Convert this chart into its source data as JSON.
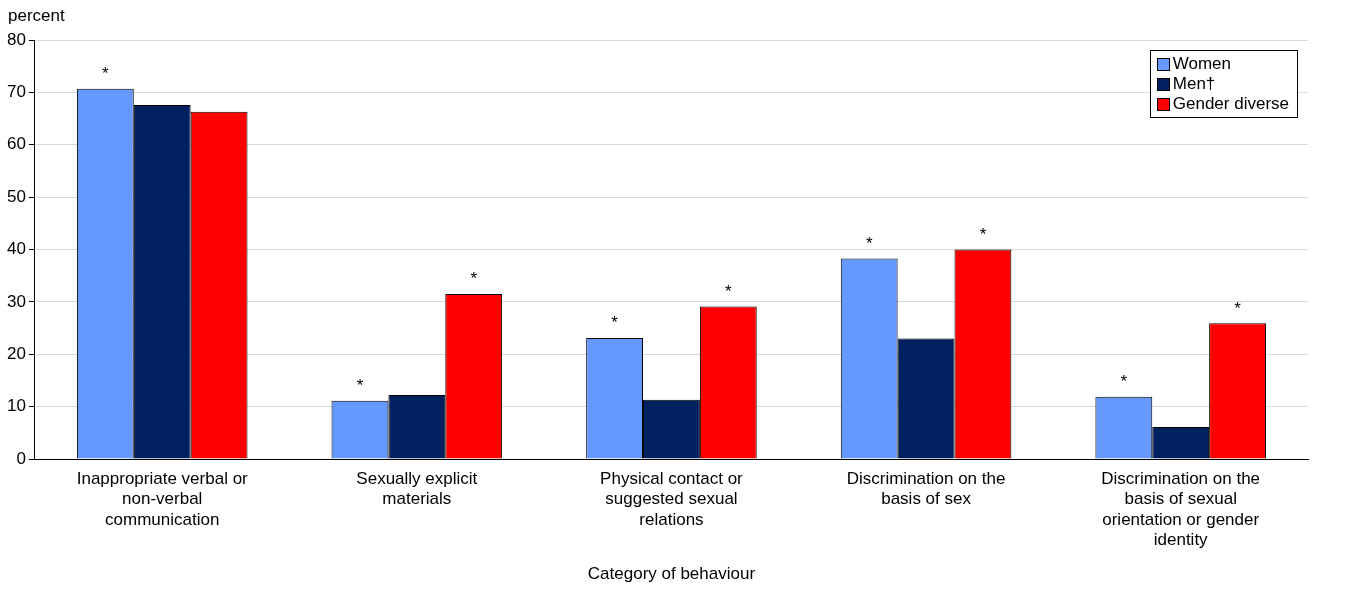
{
  "chart_data": {
    "type": "bar",
    "ylabel": "percent",
    "xlabel": "Category of behaviour",
    "categories": [
      "Inappropriate verbal or non-verbal communication",
      "Sexually explicit materials",
      "Physical contact or suggested sexual relations",
      "Discrimination on the basis of sex",
      "Discrimination on the basis of sexual orientation or gender identity"
    ],
    "series": [
      {
        "name": "Women",
        "color": "#6699ff",
        "values": [
          70.7,
          11.1,
          23.1,
          38.3,
          11.9
        ],
        "value_labels": [
          "*",
          "*",
          "*",
          "*",
          "*"
        ]
      },
      {
        "name": "Men†",
        "color": "#002060",
        "values": [
          67.6,
          12.2,
          11.3,
          23.0,
          6.1
        ]
      },
      {
        "name": "Gender diverse",
        "color": "#ff0000",
        "values": [
          66.3,
          31.5,
          29.1,
          40.0,
          25.9
        ],
        "value_labels": [
          null,
          "*",
          "*",
          "*",
          "*"
        ]
      }
    ],
    "ylim": [
      0,
      80
    ],
    "yticks": [
      0,
      10,
      20,
      30,
      40,
      50,
      60,
      70,
      80
    ],
    "grid": "y",
    "legend": "top right"
  }
}
